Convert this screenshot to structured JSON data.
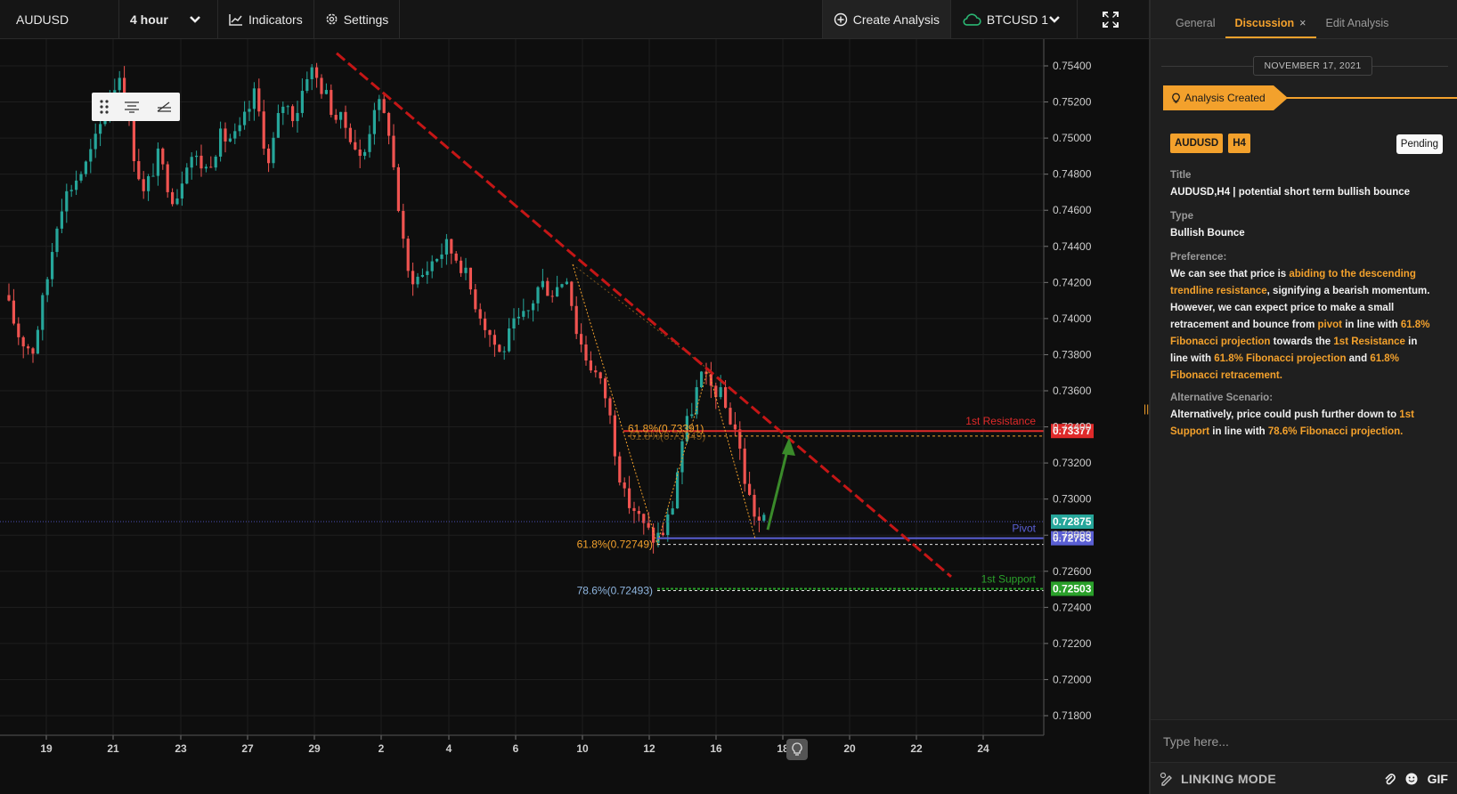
{
  "toolbar": {
    "symbol": "AUDUSD",
    "interval": "4 hour",
    "indicators_label": "Indicators",
    "settings_label": "Settings",
    "create_analysis_label": "Create Analysis",
    "compare_symbol": "BTCUSD 1"
  },
  "chart": {
    "price_axis_ticks": [
      "0.75400",
      "0.75200",
      "0.75000",
      "0.74800",
      "0.74600",
      "0.74400",
      "0.74200",
      "0.74000",
      "0.73800",
      "0.73600",
      "0.73400",
      "0.73200",
      "0.73000",
      "0.72800",
      "0.72600",
      "0.72400",
      "0.72200",
      "0.72000",
      "0.71800"
    ],
    "date_axis_ticks": [
      "19",
      "21",
      "23",
      "27",
      "29",
      "2",
      "4",
      "6",
      "10",
      "12",
      "16",
      "18",
      "20",
      "22",
      "24"
    ],
    "levels": {
      "resistance": {
        "label": "1st Resistance",
        "price": "0.73377",
        "color": "#e02a2a"
      },
      "pivot": {
        "label": "Pivot",
        "price": "0.72783",
        "color": "#5a5fd4"
      },
      "support": {
        "label": "1st Support",
        "price": "0.72503",
        "color": "#2aa02a"
      },
      "current_price": {
        "price": "0.72875",
        "color": "#26a69a"
      }
    },
    "fib_labels": {
      "fib_upper": "61.8%(0.73391)",
      "fib_upper_ghost": "61.8%(0.73349)",
      "fib_pivot": "61.8%(0.72749)",
      "fib_support": "78.6%(0.72493)"
    },
    "colors": {
      "up": "#26a69a",
      "down": "#ef5350",
      "trendline": "#c51616",
      "arrow": "#3a8a2a",
      "fib": "#f3a12c"
    }
  },
  "panel": {
    "tabs": [
      {
        "label": "General"
      },
      {
        "label": "Discussion",
        "active": true
      },
      {
        "label": "Edit Analysis"
      }
    ],
    "date": "NOVEMBER 17, 2021",
    "created_label": "Analysis Created",
    "symbol_badge": "AUDUSD",
    "timeframe_badge": "H4",
    "status": "Pending",
    "title_label": "Title",
    "title_value": "AUDUSD,H4 | potential short term bullish bounce",
    "type_label": "Type",
    "type_value": "Bullish Bounce",
    "preference_label": "Preference:",
    "preference": {
      "p1": "We can see that price is ",
      "h1": "abiding to the descending trendline resistance",
      "p2": ", signifying a bearish momentum. However, we can expect price to make a small retracement and bounce from ",
      "h2": "pivot",
      "p3": " in line with ",
      "h3": "61.8% Fibonacci projection",
      "p4": " towards the ",
      "h4": "1st Resistance",
      "p5": " in line with ",
      "h5": "61.8% Fibonacci projection",
      "p6": " and ",
      "h6": "61.8% Fibonacci retracement."
    },
    "alternative_label": "Alternative Scenario:",
    "alternative": {
      "p1": "Alternatively, price could push further down to ",
      "h1": "1st Support",
      "p2": " in line with ",
      "h2": "78.6% Fibonacci projection."
    },
    "composer_placeholder": "Type here...",
    "linking_label": "LINKING MODE",
    "gif_label": "GIF"
  }
}
